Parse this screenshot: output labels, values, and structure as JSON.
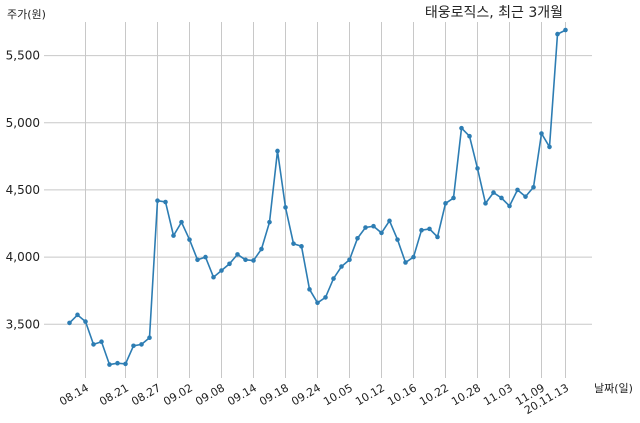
{
  "chart_data": {
    "type": "line",
    "title": "태웅로직스, 최근 3개월",
    "ylabel": "주가(원)",
    "xlabel": "날짜(일)",
    "ylim": [
      3100,
      5750
    ],
    "y_ticks": [
      3500,
      4000,
      4500,
      5000,
      5500
    ],
    "y_tick_labels": [
      "3,500",
      "4,000",
      "4,500",
      "5,000",
      "5,500"
    ],
    "x_tick_labels": [
      "08.14",
      "08.21",
      "08.27",
      "09.02",
      "09.08",
      "09.14",
      "09.18",
      "09.24",
      "10.05",
      "10.12",
      "10.16",
      "10.22",
      "10.28",
      "11.03",
      "11.09",
      "20.11.13"
    ],
    "x_tick_index": [
      2,
      7,
      11,
      15,
      19,
      23,
      27,
      31,
      35,
      39,
      43,
      47,
      51,
      55,
      59,
      62
    ],
    "grid": true,
    "series": [
      {
        "values": [
          3510,
          3570,
          3520,
          3350,
          3370,
          3200,
          3210,
          3205,
          3340,
          3350,
          3400,
          4420,
          4410,
          4160,
          4260,
          4130,
          3980,
          4000,
          3850,
          3900,
          3950,
          4020,
          3980,
          3975,
          4060,
          4260,
          4790,
          4370,
          4100,
          4080,
          3760,
          3660,
          3700,
          3840,
          3930,
          3980,
          4140,
          4220,
          4230,
          4180,
          4270,
          4130,
          3960,
          4000,
          4200,
          4210,
          4150,
          4400,
          4440,
          4960,
          4900,
          4660,
          4400,
          4480,
          4440,
          4380,
          4500,
          4450,
          4520,
          4920,
          4820,
          5660,
          5690
        ]
      }
    ]
  }
}
